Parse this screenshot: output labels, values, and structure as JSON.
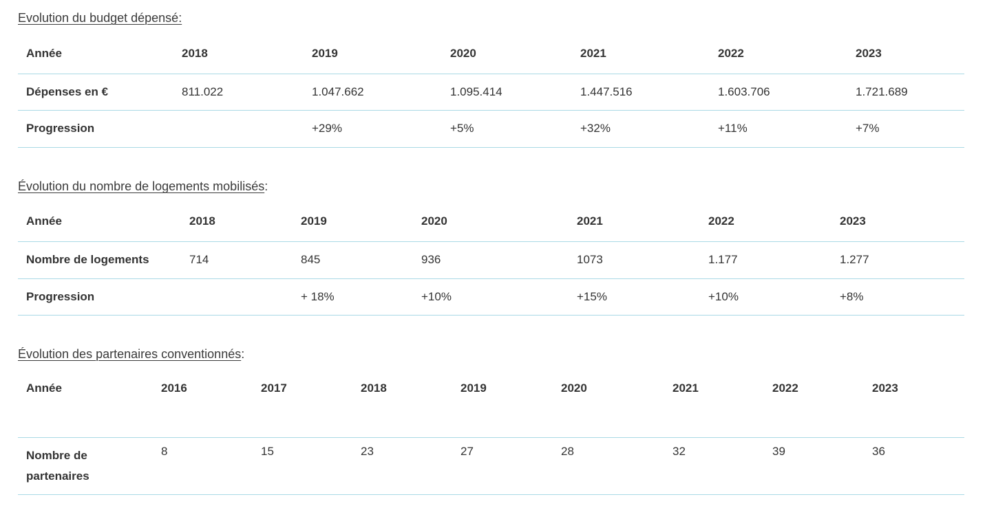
{
  "budget": {
    "caption": "Evolution du budget dépensé:",
    "row_header_year": "Année",
    "years": [
      "2018",
      "2019",
      "2020",
      "2021",
      "2022",
      "2023"
    ],
    "row_header_spend": "Dépenses en €",
    "spend": [
      "811.022",
      "1.047.662",
      "1.095.414",
      "1.447.516",
      "1.603.706",
      "1.721.689"
    ],
    "row_header_progress": "Progression",
    "progress": [
      "",
      "+29%",
      "+5%",
      "+32%",
      "+11%",
      "+7%"
    ]
  },
  "housing": {
    "caption": "Évolution du nombre de logements mobilisés",
    "caption_suffix": ":",
    "row_header_year": "Année",
    "years": [
      "2018",
      "2019",
      "2020",
      "2021",
      "2022",
      "2023"
    ],
    "row_header_count": "Nombre de logements",
    "counts": [
      "714",
      "845",
      "936",
      "1073",
      "1.177",
      "1.277"
    ],
    "row_header_progress": "Progression",
    "progress": [
      "",
      "+ 18%",
      "+10%",
      "+15%",
      "+10%",
      "+8%"
    ]
  },
  "partners": {
    "caption": "Évolution des partenaires conventionnés",
    "caption_suffix": ":",
    "row_header_year": "Année",
    "years": [
      "2016",
      "2017",
      "2018",
      "2019",
      "2020",
      "2021",
      "2022",
      "2023"
    ],
    "row_header_count": "Nombre de partenaires",
    "counts": [
      "8",
      "15",
      "23",
      "27",
      "28",
      "32",
      "39",
      "36"
    ]
  }
}
